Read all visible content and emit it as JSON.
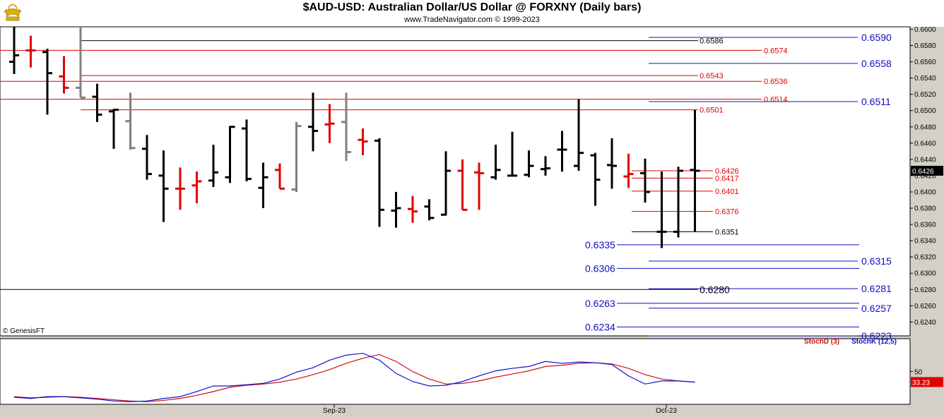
{
  "header": {
    "title": "$AUD-USD:  Australian Dollar/US Dollar @ FORXNY  (Daily bars)",
    "subtitle": "www.TradeNavigator.com © 1999-2023",
    "logo_icon": "gold-bull-logo-icon"
  },
  "watermark": "© GenesisFT",
  "colors": {
    "up_bar": "#000000",
    "down_bar": "#e00000",
    "neutral_bar": "#808080",
    "blue_level": "#1010c0",
    "red_level": "#e00000",
    "black_level": "#000000",
    "stoch_d": "#d01010",
    "stoch_k": "#1010d0",
    "last_price_bg": "#000000",
    "stoch_value_bg": "#e00000"
  },
  "chart_data": [
    {
      "type": "ohlc",
      "name": "price",
      "ylim": [
        0.6223,
        0.6603
      ],
      "y_ticks": [
        "0.6600",
        "0.6580",
        "0.6560",
        "0.6540",
        "0.6520",
        "0.6500",
        "0.6480",
        "0.6460",
        "0.6440",
        "0.6420",
        "0.6400",
        "0.6380",
        "0.6360",
        "0.6340",
        "0.6320",
        "0.6300",
        "0.6280",
        "0.6260",
        "0.6240"
      ],
      "last_price": "0.6426",
      "x_labels": [
        {
          "label": "Sep-23",
          "bar": 20
        },
        {
          "label": "Oct-23",
          "bar": 40
        }
      ],
      "bars": [
        {
          "o": 0.656,
          "h": 0.6603,
          "l": 0.6545,
          "c": 0.6568,
          "color": "black"
        },
        {
          "o": 0.6574,
          "h": 0.6592,
          "l": 0.6553,
          "c": 0.6574,
          "color": "red"
        },
        {
          "o": 0.6572,
          "h": 0.6576,
          "l": 0.6495,
          "c": 0.6546,
          "color": "black"
        },
        {
          "o": 0.6542,
          "h": 0.6567,
          "l": 0.6521,
          "c": 0.6528,
          "color": "red"
        },
        {
          "o": 0.6528,
          "h": 0.6603,
          "l": 0.6516,
          "c": 0.6516,
          "color": "gray"
        },
        {
          "o": 0.6517,
          "h": 0.6533,
          "l": 0.6486,
          "c": 0.6495,
          "color": "black"
        },
        {
          "o": 0.6499,
          "h": 0.6502,
          "l": 0.6453,
          "c": 0.6501,
          "color": "black"
        },
        {
          "o": 0.6487,
          "h": 0.6522,
          "l": 0.6452,
          "c": 0.6454,
          "color": "gray"
        },
        {
          "o": 0.6453,
          "h": 0.647,
          "l": 0.6415,
          "c": 0.6422,
          "color": "black"
        },
        {
          "o": 0.642,
          "h": 0.6451,
          "l": 0.6363,
          "c": 0.6404,
          "color": "black"
        },
        {
          "o": 0.6404,
          "h": 0.643,
          "l": 0.6378,
          "c": 0.6404,
          "color": "red"
        },
        {
          "o": 0.6408,
          "h": 0.6425,
          "l": 0.6386,
          "c": 0.6413,
          "color": "red"
        },
        {
          "o": 0.6414,
          "h": 0.6458,
          "l": 0.6406,
          "c": 0.6424,
          "color": "black"
        },
        {
          "o": 0.6418,
          "h": 0.6481,
          "l": 0.6411,
          "c": 0.648,
          "color": "black"
        },
        {
          "o": 0.6478,
          "h": 0.6489,
          "l": 0.6413,
          "c": 0.6416,
          "color": "black"
        },
        {
          "o": 0.6405,
          "h": 0.6436,
          "l": 0.638,
          "c": 0.6418,
          "color": "black"
        },
        {
          "o": 0.6427,
          "h": 0.6435,
          "l": 0.6404,
          "c": 0.6404,
          "color": "red"
        },
        {
          "o": 0.6403,
          "h": 0.6486,
          "l": 0.64,
          "c": 0.6481,
          "color": "gray"
        },
        {
          "o": 0.648,
          "h": 0.6522,
          "l": 0.645,
          "c": 0.6475,
          "color": "black"
        },
        {
          "o": 0.6483,
          "h": 0.6508,
          "l": 0.646,
          "c": 0.6484,
          "color": "red"
        },
        {
          "o": 0.6486,
          "h": 0.6522,
          "l": 0.6438,
          "c": 0.6449,
          "color": "gray"
        },
        {
          "o": 0.6464,
          "h": 0.6478,
          "l": 0.6445,
          "c": 0.6462,
          "color": "red"
        },
        {
          "o": 0.6463,
          "h": 0.6466,
          "l": 0.6357,
          "c": 0.6378,
          "color": "black"
        },
        {
          "o": 0.6377,
          "h": 0.64,
          "l": 0.6356,
          "c": 0.638,
          "color": "black"
        },
        {
          "o": 0.6379,
          "h": 0.6395,
          "l": 0.6362,
          "c": 0.6376,
          "color": "red"
        },
        {
          "o": 0.6382,
          "h": 0.6391,
          "l": 0.6365,
          "c": 0.6368,
          "color": "black"
        },
        {
          "o": 0.6372,
          "h": 0.645,
          "l": 0.6371,
          "c": 0.6426,
          "color": "black"
        },
        {
          "o": 0.6426,
          "h": 0.644,
          "l": 0.6378,
          "c": 0.6378,
          "color": "red"
        },
        {
          "o": 0.6424,
          "h": 0.6436,
          "l": 0.6378,
          "c": 0.6423,
          "color": "red"
        },
        {
          "o": 0.6418,
          "h": 0.6458,
          "l": 0.6415,
          "c": 0.6427,
          "color": "black"
        },
        {
          "o": 0.642,
          "h": 0.6474,
          "l": 0.642,
          "c": 0.642,
          "color": "black"
        },
        {
          "o": 0.6421,
          "h": 0.6451,
          "l": 0.6418,
          "c": 0.6432,
          "color": "black"
        },
        {
          "o": 0.6428,
          "h": 0.6444,
          "l": 0.642,
          "c": 0.6429,
          "color": "black"
        },
        {
          "o": 0.6452,
          "h": 0.6475,
          "l": 0.6425,
          "c": 0.6452,
          "color": "black"
        },
        {
          "o": 0.6432,
          "h": 0.6514,
          "l": 0.6426,
          "c": 0.6448,
          "color": "black"
        },
        {
          "o": 0.6445,
          "h": 0.6448,
          "l": 0.6383,
          "c": 0.6415,
          "color": "black"
        },
        {
          "o": 0.6433,
          "h": 0.6466,
          "l": 0.6404,
          "c": 0.6432,
          "color": "black"
        },
        {
          "o": 0.6419,
          "h": 0.6447,
          "l": 0.6405,
          "c": 0.6422,
          "color": "red"
        },
        {
          "o": 0.6423,
          "h": 0.6441,
          "l": 0.6387,
          "c": 0.64,
          "color": "black"
        },
        {
          "o": 0.6351,
          "h": 0.6425,
          "l": 0.6331,
          "c": 0.6351,
          "color": "black"
        },
        {
          "o": 0.6351,
          "h": 0.6431,
          "l": 0.6344,
          "c": 0.6426,
          "color": "black"
        },
        {
          "o": 0.6427,
          "h": 0.6501,
          "l": 0.6351,
          "c": 0.6426,
          "color": "black"
        }
      ],
      "levels": [
        {
          "value": 0.659,
          "label": "0.6590",
          "color": "blue",
          "size": "large",
          "side": "right"
        },
        {
          "value": 0.6586,
          "label": "0.6586",
          "color": "black",
          "size": "small",
          "side": "mid"
        },
        {
          "value": 0.6574,
          "label": "0.6574",
          "color": "red",
          "size": "small",
          "side": "midright"
        },
        {
          "value": 0.6558,
          "label": "0.6558",
          "color": "blue",
          "size": "large",
          "side": "right"
        },
        {
          "value": 0.6543,
          "label": "0.6543",
          "color": "red",
          "size": "small",
          "side": "mid"
        },
        {
          "value": 0.6536,
          "label": "0.6536",
          "color": "red",
          "size": "small",
          "side": "midright"
        },
        {
          "value": 0.6514,
          "label": "0.6514",
          "color": "red",
          "size": "small",
          "side": "midright"
        },
        {
          "value": 0.6511,
          "label": "0.6511",
          "color": "blue",
          "size": "large",
          "side": "right"
        },
        {
          "value": 0.6501,
          "label": "0.6501",
          "color": "red",
          "size": "small",
          "side": "mid"
        },
        {
          "value": 0.6426,
          "label": "0.6426",
          "color": "red",
          "size": "small",
          "side": "near"
        },
        {
          "value": 0.6417,
          "label": "0.6417",
          "color": "red",
          "size": "small",
          "side": "near"
        },
        {
          "value": 0.6401,
          "label": "0.6401",
          "color": "red",
          "size": "small",
          "side": "near"
        },
        {
          "value": 0.6376,
          "label": "0.6376",
          "color": "red",
          "size": "small",
          "side": "near"
        },
        {
          "value": 0.6351,
          "label": "0.6351",
          "color": "black",
          "size": "small",
          "side": "near"
        },
        {
          "value": 0.6335,
          "label": "0.6335",
          "color": "blue",
          "size": "large",
          "side": "left"
        },
        {
          "value": 0.6315,
          "label": "0.6315",
          "color": "blue",
          "size": "large",
          "side": "right"
        },
        {
          "value": 0.6306,
          "label": "0.6306",
          "color": "blue",
          "size": "large",
          "side": "left"
        },
        {
          "value": 0.6281,
          "label": "0.6281",
          "color": "blue",
          "size": "large",
          "side": "right"
        },
        {
          "value": 0.628,
          "label": "0.6280",
          "color": "black",
          "size": "large",
          "side": "mid"
        },
        {
          "value": 0.6263,
          "label": "0.6263",
          "color": "blue",
          "size": "large",
          "side": "left"
        },
        {
          "value": 0.6257,
          "label": "0.6257",
          "color": "blue",
          "size": "large",
          "side": "right"
        },
        {
          "value": 0.6234,
          "label": "0.6234",
          "color": "blue",
          "size": "large",
          "side": "left"
        },
        {
          "value": 0.6223,
          "label": "0.6223",
          "color": "blue",
          "size": "large",
          "side": "right"
        }
      ]
    },
    {
      "type": "line",
      "name": "stochastic",
      "ylim": [
        0,
        100
      ],
      "y_ticks": [
        "50"
      ],
      "last_value": "33.23",
      "legend": [
        "StochD (3)",
        "StochK (12,5)"
      ],
      "series": [
        {
          "name": "StochD (3)",
          "color": "red",
          "values": [
            10,
            8,
            9,
            10,
            9,
            7,
            5,
            3,
            2,
            4,
            7,
            12,
            18,
            25,
            28,
            30,
            33,
            38,
            45,
            53,
            63,
            71,
            77,
            66,
            50,
            38,
            30,
            31,
            35,
            41,
            46,
            51,
            58,
            60,
            63,
            64,
            62,
            55,
            45,
            38,
            35,
            33
          ]
        },
        {
          "name": "StochK (12,5)",
          "color": "blue",
          "values": [
            9,
            7,
            10,
            10,
            8,
            6,
            3,
            2,
            3,
            7,
            10,
            18,
            27,
            27,
            29,
            31,
            38,
            49,
            56,
            68,
            76,
            79,
            68,
            47,
            34,
            27,
            28,
            34,
            43,
            51,
            55,
            58,
            66,
            63,
            65,
            64,
            61,
            43,
            30,
            35,
            35,
            33
          ]
        }
      ]
    }
  ]
}
